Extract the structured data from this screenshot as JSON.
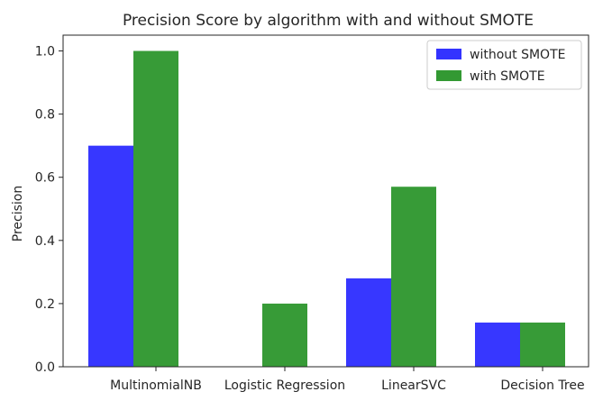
{
  "chart_data": {
    "type": "bar",
    "title": "Precision Score by algorithm with and without SMOTE",
    "xlabel": "",
    "ylabel": "Precision",
    "categories": [
      "MultinomialNB",
      "Logistic Regression",
      "LinearSVC",
      "Decision Tree"
    ],
    "series": [
      {
        "name": "without SMOTE",
        "color": "#3333ff",
        "values": [
          0.7,
          0.0,
          0.28,
          0.14
        ]
      },
      {
        "name": "with SMOTE",
        "color": "#339933",
        "values": [
          1.0,
          0.2,
          0.57,
          0.14
        ]
      }
    ],
    "ylim": [
      0,
      1.05
    ],
    "yticks": [
      "0.0",
      "0.2",
      "0.4",
      "0.6",
      "0.8",
      "1.0"
    ],
    "grid": false,
    "legend_position": "top-right"
  }
}
